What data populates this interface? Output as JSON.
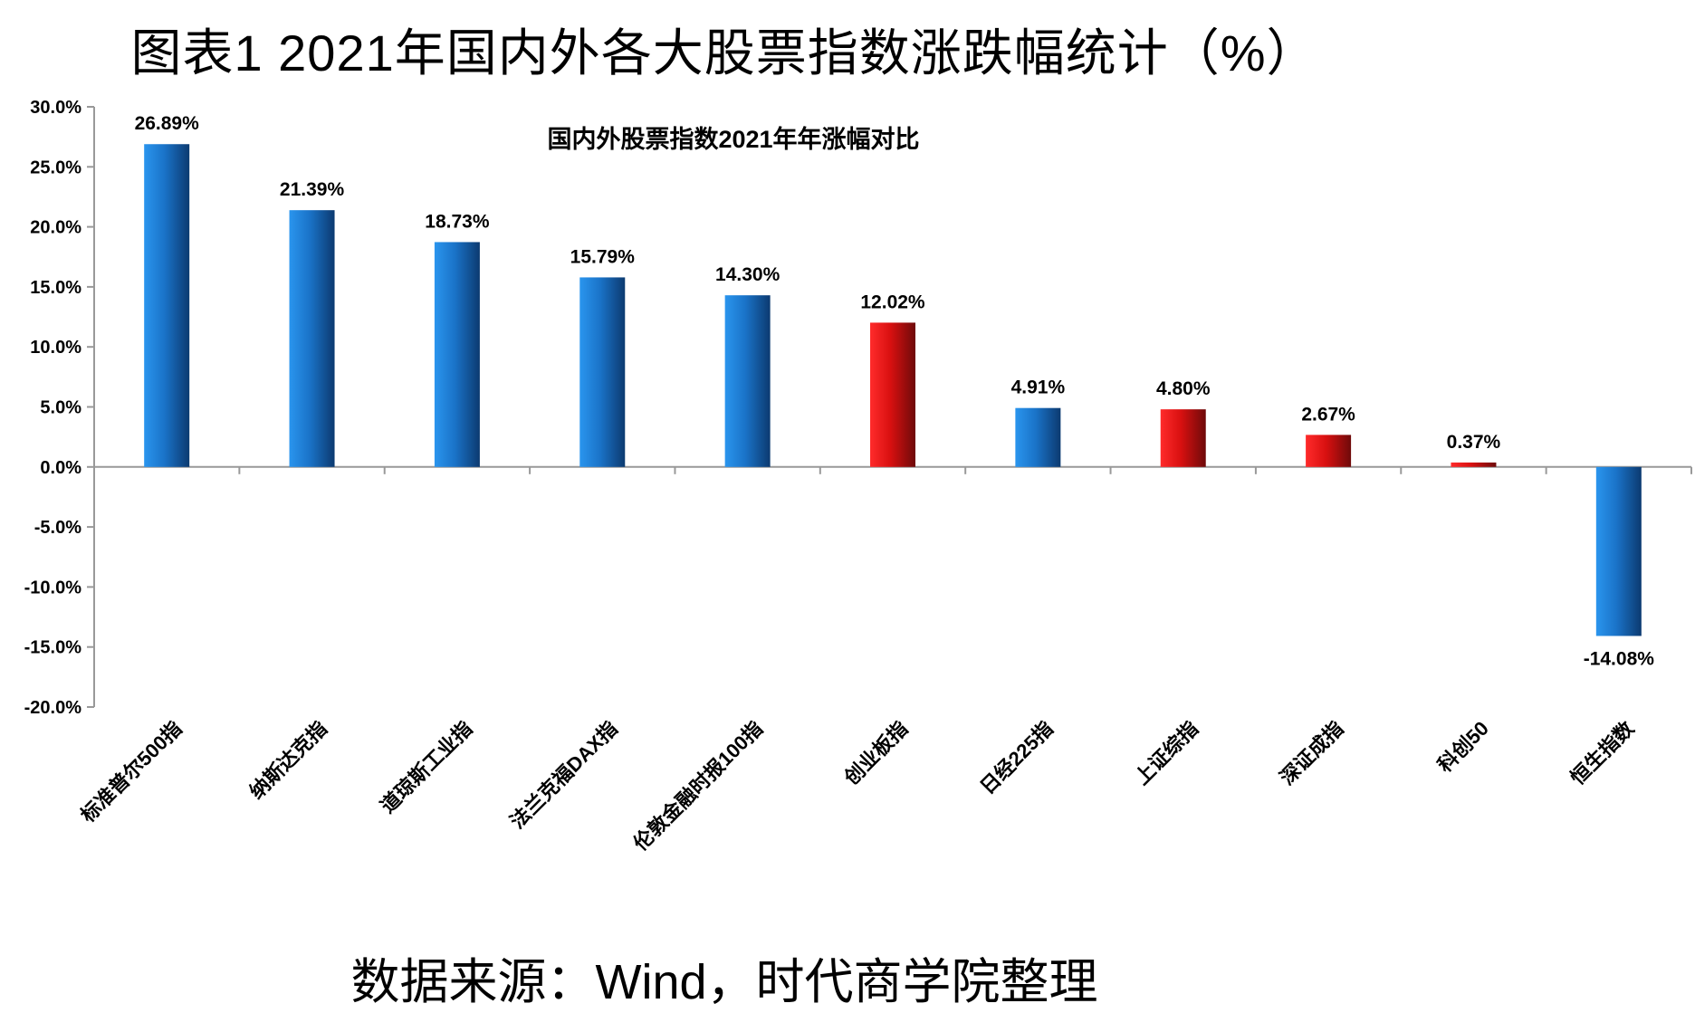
{
  "page": {
    "title": "图表1   2021年国内外各大股票指数涨跌幅统计（%）",
    "source": "数据来源：Wind，时代商学院整理"
  },
  "chart_data": {
    "type": "bar",
    "title": "国内外股票指数2021年年涨幅对比",
    "xlabel": "",
    "ylabel": "",
    "ylim": [
      -20,
      30
    ],
    "yticks": [
      30,
      25,
      20,
      15,
      10,
      5,
      0,
      -5,
      -10,
      -15,
      -20
    ],
    "ytick_format": "%.1f%%",
    "categories": [
      "标准普尔500指",
      "纳斯达克指",
      "道琼斯工业指",
      "法兰克福DAX指",
      "伦敦金融时报100指",
      "创业板指",
      "日经225指",
      "上证综指",
      "深证成指",
      "科创50",
      "恒生指数"
    ],
    "values": [
      26.89,
      21.39,
      18.73,
      15.79,
      14.3,
      12.02,
      4.91,
      4.8,
      2.67,
      0.37,
      -14.08
    ],
    "data_labels": [
      "26.89%",
      "21.39%",
      "18.73%",
      "15.79%",
      "14.30%",
      "12.02%",
      "4.91%",
      "4.80%",
      "2.67%",
      "0.37%",
      "-14.08%"
    ],
    "bar_colors": [
      "blue",
      "blue",
      "blue",
      "blue",
      "blue",
      "red",
      "blue",
      "red",
      "red",
      "red",
      "blue"
    ],
    "colors": {
      "blue": "#1f7fd6",
      "red": "#d81414",
      "axis": "#999999"
    },
    "grid": false,
    "legend": "none"
  }
}
